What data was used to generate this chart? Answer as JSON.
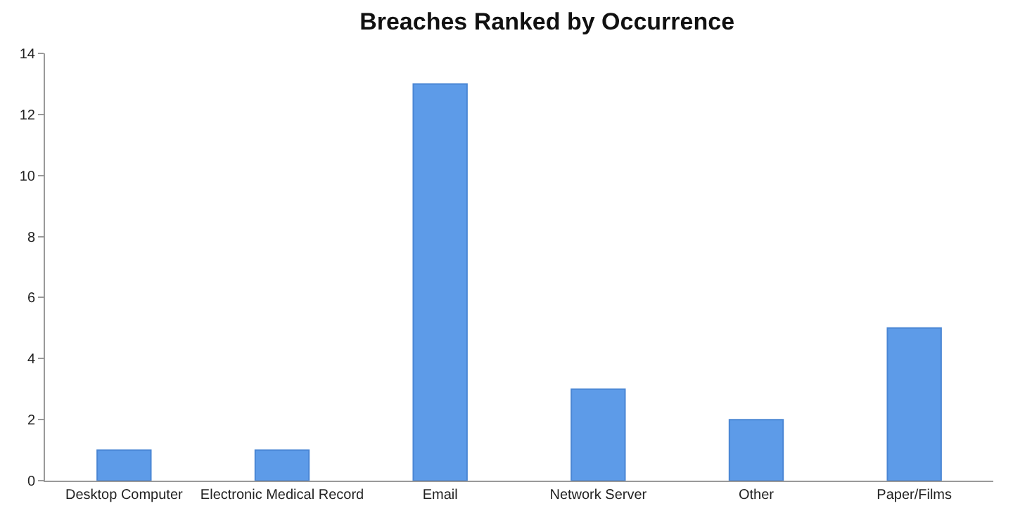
{
  "chart_data": {
    "type": "bar",
    "title": "Breaches Ranked by Occurrence",
    "categories": [
      "Desktop Computer",
      "Electronic Medical Record",
      "Email",
      "Network Server",
      "Other",
      "Paper/Films"
    ],
    "values": [
      1,
      1,
      13,
      3,
      2,
      5
    ],
    "color": "#5d9be8",
    "ylim": [
      0,
      14
    ],
    "yticks": [
      0,
      2,
      4,
      6,
      8,
      10,
      12,
      14
    ]
  }
}
